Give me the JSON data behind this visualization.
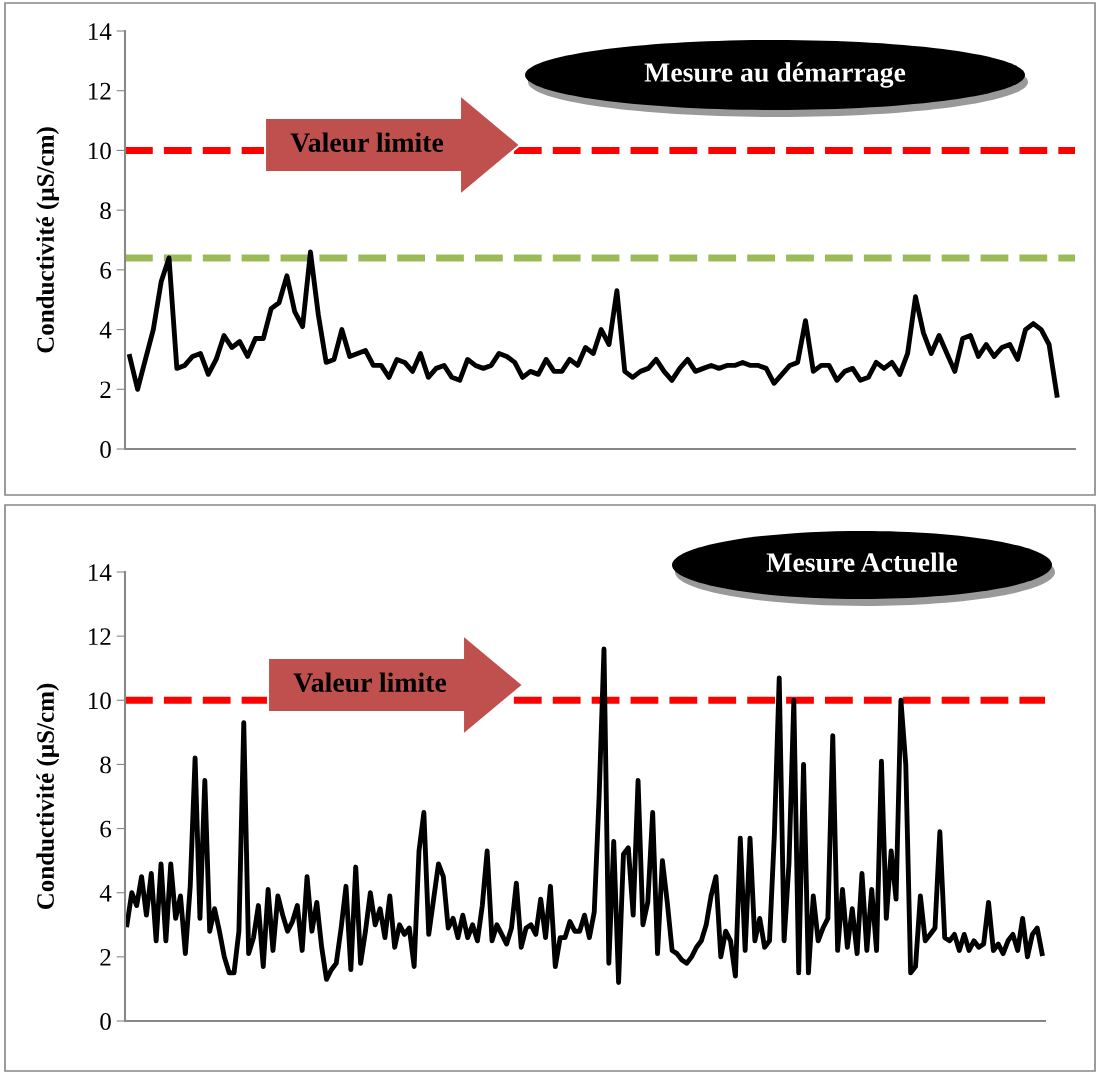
{
  "chart_data": [
    {
      "type": "line",
      "ylabel": "Conductivité (µS/cm)",
      "color": "#000000",
      "line_style": "solid",
      "ylim": [
        0,
        14
      ],
      "yticks": [
        0,
        2,
        4,
        6,
        8,
        10,
        12,
        14
      ],
      "tick_labels": "y",
      "grid": false,
      "legend": false,
      "annotations": [
        "Mesure au démarrage"
      ],
      "ref_lines": [
        {
          "axis": "y",
          "value": 10,
          "label": "Valeur limite",
          "color": "#ff0000",
          "line_style": "dashed"
        },
        {
          "axis": "y",
          "value": 6.4,
          "color": "#9bbb59",
          "line_style": "dashed"
        }
      ],
      "categories": [
        null,
        null,
        null,
        null,
        null,
        null,
        null,
        null,
        null,
        null,
        null,
        null,
        null,
        null,
        null,
        null,
        null,
        null,
        null,
        null,
        null,
        null,
        null,
        null,
        null,
        null,
        null,
        null,
        null,
        null,
        null,
        null,
        null,
        null,
        null,
        null,
        null,
        null,
        null,
        null,
        null,
        null,
        null,
        null,
        null,
        null,
        null,
        null,
        null,
        null,
        null,
        null,
        null,
        null,
        null,
        null,
        null,
        null,
        null,
        null,
        null,
        null,
        null,
        null,
        null,
        null,
        null,
        null,
        null,
        null,
        null,
        null,
        null,
        null,
        null,
        null,
        null,
        null,
        null,
        null,
        null,
        null,
        null,
        null,
        null,
        null,
        null,
        null,
        null,
        null,
        null,
        null,
        null,
        null,
        null,
        null,
        null,
        null,
        null,
        null,
        null,
        null,
        null,
        null,
        null,
        null,
        null,
        null,
        null,
        null,
        null,
        null,
        null,
        null,
        null,
        null,
        null,
        null,
        null
      ],
      "values": [
        3.1,
        2.0,
        3.0,
        4.0,
        5.6,
        6.4,
        2.7,
        2.8,
        3.1,
        3.2,
        2.5,
        3.0,
        3.8,
        3.4,
        3.6,
        3.1,
        3.7,
        3.7,
        4.7,
        4.9,
        5.8,
        4.6,
        4.1,
        6.6,
        4.5,
        2.9,
        3.0,
        4.0,
        3.1,
        3.2,
        3.3,
        2.8,
        2.8,
        2.4,
        3.0,
        2.9,
        2.6,
        3.2,
        2.4,
        2.7,
        2.8,
        2.4,
        2.3,
        3.0,
        2.8,
        2.7,
        2.8,
        3.2,
        3.1,
        2.9,
        2.4,
        2.6,
        2.5,
        3.0,
        2.6,
        2.6,
        3.0,
        2.8,
        3.4,
        3.2,
        4.0,
        3.5,
        5.3,
        2.6,
        2.4,
        2.6,
        2.7,
        3.0,
        2.6,
        2.3,
        2.7,
        3.0,
        2.6,
        2.7,
        2.8,
        2.7,
        2.8,
        2.8,
        2.9,
        2.8,
        2.8,
        2.7,
        2.2,
        2.5,
        2.8,
        2.9,
        4.3,
        2.6,
        2.8,
        2.8,
        2.3,
        2.6,
        2.7,
        2.3,
        2.4,
        2.9,
        2.7,
        2.9,
        2.5,
        3.2,
        5.1,
        3.9,
        3.2,
        3.8,
        3.2,
        2.6,
        3.7,
        3.8,
        3.1,
        3.5,
        3.1,
        3.4,
        3.5,
        3.0,
        4.0,
        4.2,
        4.0,
        3.5,
        1.8
      ]
    },
    {
      "type": "line",
      "ylabel": "Conductivité (µS/cm)",
      "color": "#000000",
      "line_style": "solid",
      "ylim": [
        0,
        14
      ],
      "yticks": [
        0,
        2,
        4,
        6,
        8,
        10,
        12,
        14
      ],
      "tick_labels": "y",
      "grid": false,
      "legend": false,
      "annotations": [
        "Mesure Actuelle"
      ],
      "ref_lines": [
        {
          "axis": "y",
          "value": 10,
          "label": "Valeur limite",
          "color": "#ff0000",
          "line_style": "dashed"
        }
      ],
      "categories": [
        null,
        null,
        null,
        null,
        null,
        null,
        null,
        null,
        null,
        null,
        null,
        null,
        null,
        null,
        null,
        null,
        null,
        null,
        null,
        null,
        null,
        null,
        null,
        null,
        null,
        null,
        null,
        null,
        null,
        null,
        null,
        null,
        null,
        null,
        null,
        null,
        null,
        null,
        null,
        null,
        null,
        null,
        null,
        null,
        null,
        null,
        null,
        null,
        null,
        null,
        null,
        null,
        null,
        null,
        null,
        null,
        null,
        null,
        null,
        null,
        null,
        null,
        null,
        null,
        null,
        null,
        null,
        null,
        null,
        null,
        null,
        null,
        null,
        null,
        null,
        null,
        null,
        null,
        null,
        null,
        null,
        null,
        null,
        null,
        null,
        null,
        null,
        null,
        null,
        null,
        null,
        null,
        null,
        null,
        null,
        null,
        null,
        null,
        null,
        null,
        null,
        null,
        null,
        null,
        null,
        null,
        null,
        null,
        null,
        null,
        null,
        null,
        null,
        null,
        null,
        null,
        null,
        null,
        null,
        null,
        null,
        null,
        null,
        null,
        null,
        null,
        null,
        null,
        null,
        null,
        null,
        null,
        null,
        null,
        null,
        null,
        null,
        null,
        null,
        null,
        null,
        null,
        null,
        null,
        null,
        null,
        null,
        null,
        null,
        null,
        null,
        null,
        null,
        null,
        null,
        null,
        null,
        null,
        null,
        null,
        null,
        null,
        null,
        null,
        null,
        null,
        null,
        null,
        null,
        null,
        null,
        null,
        null,
        null,
        null,
        null,
        null,
        null,
        null,
        null,
        null,
        null,
        null,
        null,
        null,
        null,
        null,
        null,
        null
      ],
      "values": [
        3.0,
        4.0,
        3.6,
        4.5,
        3.3,
        4.6,
        2.5,
        4.9,
        2.5,
        4.9,
        3.2,
        3.9,
        2.1,
        4.2,
        8.2,
        3.2,
        7.5,
        2.8,
        3.5,
        2.8,
        2.0,
        1.5,
        1.5,
        2.8,
        9.3,
        2.1,
        2.6,
        3.6,
        1.7,
        4.1,
        2.2,
        3.9,
        3.3,
        2.8,
        3.1,
        3.6,
        2.2,
        4.5,
        2.8,
        3.7,
        2.3,
        1.3,
        1.6,
        1.8,
        2.9,
        4.2,
        1.6,
        4.8,
        1.8,
        2.8,
        4.0,
        3.0,
        3.5,
        2.6,
        3.9,
        2.3,
        3.0,
        2.7,
        2.9,
        1.7,
        5.3,
        6.5,
        2.7,
        3.8,
        4.9,
        4.5,
        2.9,
        3.2,
        2.6,
        3.3,
        2.6,
        3.0,
        2.5,
        3.6,
        5.3,
        2.5,
        3.0,
        2.7,
        2.4,
        2.9,
        4.3,
        2.3,
        2.9,
        3.0,
        2.7,
        3.8,
        2.6,
        4.2,
        1.7,
        2.6,
        2.6,
        3.1,
        2.8,
        2.8,
        3.3,
        2.6,
        3.4,
        7.0,
        11.6,
        1.8,
        5.6,
        1.2,
        5.2,
        5.4,
        3.3,
        7.5,
        3.0,
        3.7,
        6.5,
        2.1,
        5.0,
        3.7,
        2.2,
        2.1,
        1.9,
        1.8,
        2.0,
        2.3,
        2.5,
        3.0,
        3.9,
        4.5,
        2.0,
        2.8,
        2.5,
        1.4,
        5.7,
        2.2,
        5.7,
        2.5,
        3.2,
        2.3,
        2.5,
        5.8,
        10.7,
        2.5,
        4.9,
        10.0,
        1.5,
        8.0,
        1.5,
        3.9,
        2.5,
        2.9,
        3.2,
        8.9,
        2.2,
        4.1,
        2.3,
        3.5,
        2.1,
        4.6,
        2.2,
        4.1,
        2.2,
        8.1,
        3.2,
        5.3,
        3.8,
        10.0,
        8.0,
        1.5,
        1.7,
        3.9,
        2.5,
        2.7,
        2.9,
        5.9,
        2.6,
        2.5,
        2.7,
        2.2,
        2.7,
        2.2,
        2.5,
        2.3,
        2.4,
        3.7,
        2.2,
        2.4,
        2.1,
        2.5,
        2.7,
        2.2,
        3.2,
        2.0,
        2.7,
        2.9,
        2.1
      ]
    }
  ]
}
